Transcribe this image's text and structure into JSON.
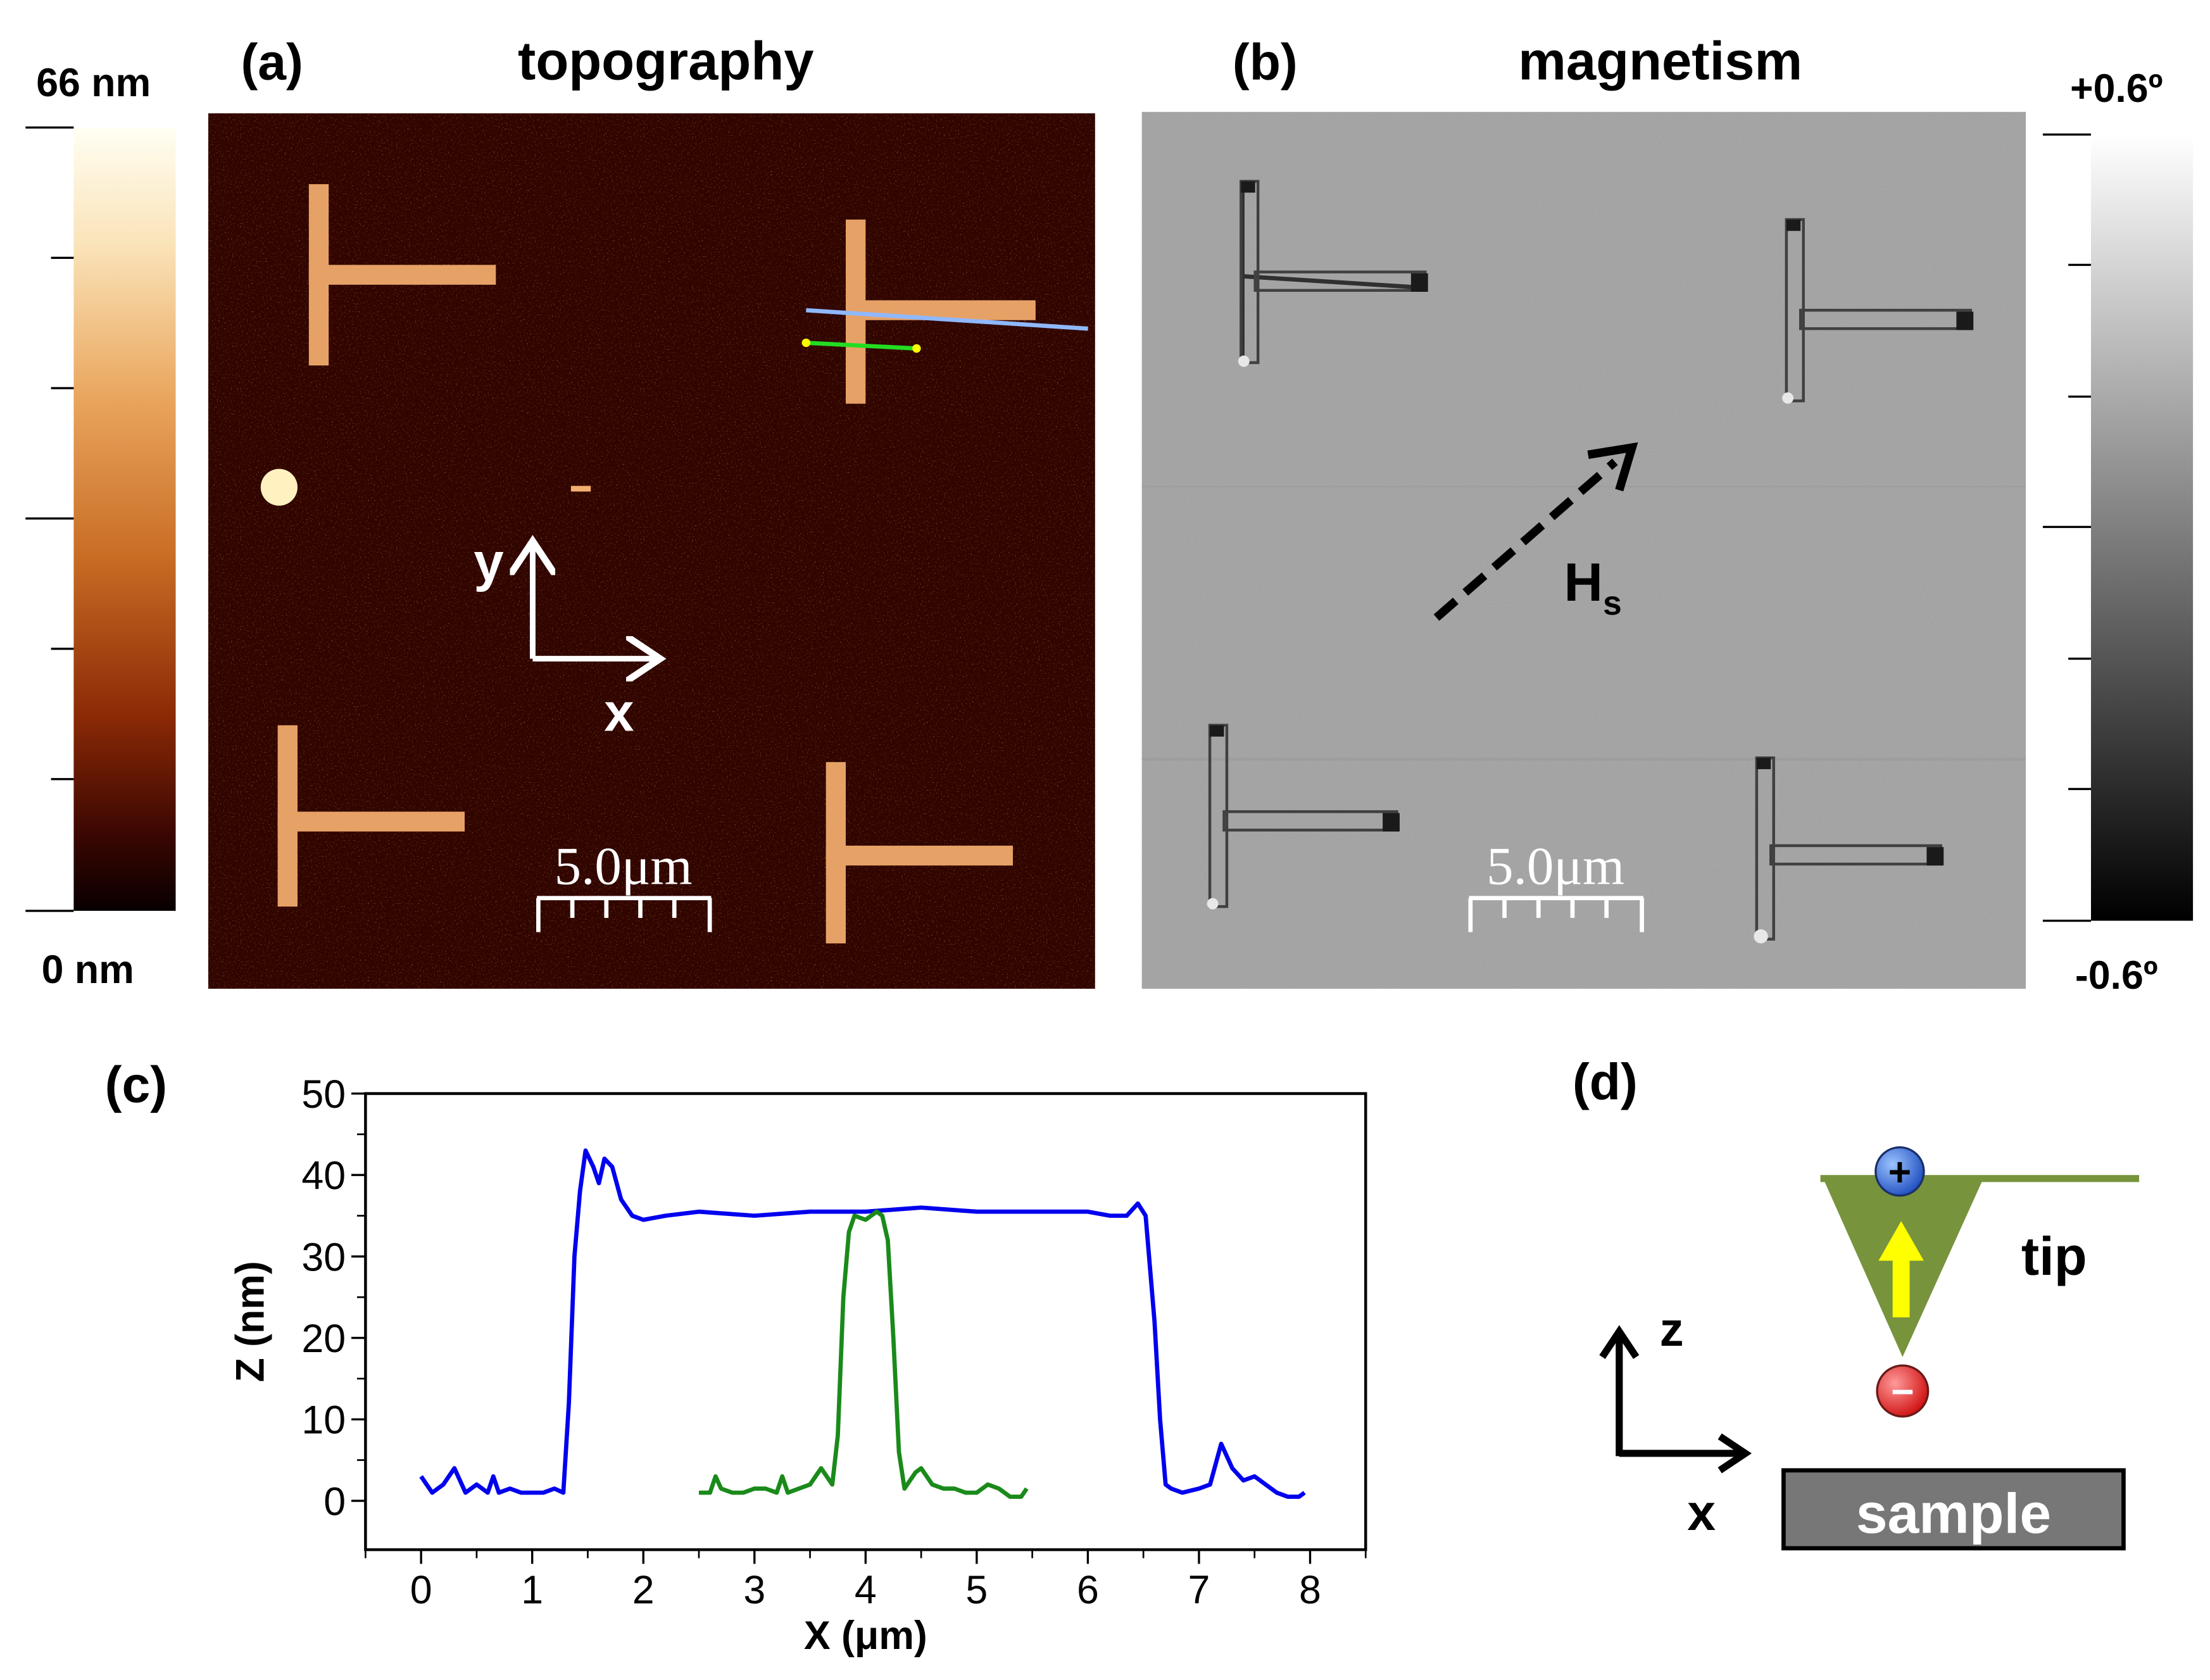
{
  "panel_a": {
    "label": "(a)",
    "title": "topography",
    "colorbar": {
      "max_label": "66 nm",
      "min_label": "0 nm",
      "max": 66,
      "min": 0,
      "unit": "nm"
    },
    "axis_x": "x",
    "axis_y": "y",
    "scalebar": "5.0μm",
    "bg_color": "#300500",
    "feature_color": "#e6a266"
  },
  "panel_b": {
    "label": "(b)",
    "title": "magnetism",
    "colorbar": {
      "max_label": "+0.6º",
      "min_label": "-0.6º",
      "max": 0.6,
      "min": -0.6,
      "unit": "º"
    },
    "field_label_main": "H",
    "field_label_sub": "s",
    "scalebar": "5.0μm",
    "bg_color": "#a3a3a3"
  },
  "panel_c": {
    "label": "(c)",
    "chart_data": {
      "type": "line",
      "xlabel": "X (μm)",
      "ylabel": "Z (nm)",
      "xlim": [
        -0.5,
        8.5
      ],
      "ylim": [
        -6,
        50
      ],
      "xticks": [
        0,
        1,
        2,
        3,
        4,
        5,
        6,
        7,
        8
      ],
      "yticks": [
        0,
        10,
        20,
        30,
        40,
        50
      ],
      "series": [
        {
          "name": "blue profile",
          "color": "#0000ee",
          "x": [
            0,
            0.1,
            0.2,
            0.3,
            0.4,
            0.5,
            0.6,
            0.65,
            0.7,
            0.8,
            0.9,
            1.0,
            1.1,
            1.2,
            1.28,
            1.33,
            1.38,
            1.43,
            1.48,
            1.55,
            1.6,
            1.65,
            1.72,
            1.8,
            1.9,
            2.0,
            2.2,
            2.5,
            3.0,
            3.5,
            4.0,
            4.5,
            5.0,
            5.5,
            6.0,
            6.2,
            6.35,
            6.45,
            6.52,
            6.6,
            6.65,
            6.7,
            6.75,
            6.85,
            7.0,
            7.1,
            7.2,
            7.3,
            7.4,
            7.5,
            7.6,
            7.7,
            7.8,
            7.9,
            7.95
          ],
          "y": [
            3,
            1,
            2,
            4,
            1,
            2,
            1,
            3,
            1,
            1.5,
            1,
            1,
            1,
            1.5,
            1,
            12,
            30,
            38,
            43,
            41,
            39,
            42,
            41,
            37,
            35,
            34.5,
            35,
            35.5,
            35,
            35.5,
            35.5,
            36,
            35.5,
            35.5,
            35.5,
            35,
            35,
            36.5,
            35,
            22,
            10,
            2,
            1.5,
            1,
            1.5,
            2,
            7,
            4,
            2.5,
            3,
            2,
            1,
            0.5,
            0.5,
            1
          ]
        },
        {
          "name": "green profile",
          "color": "#1a8a1a",
          "x": [
            2.5,
            2.6,
            2.65,
            2.7,
            2.8,
            2.9,
            3.0,
            3.1,
            3.2,
            3.25,
            3.3,
            3.4,
            3.5,
            3.6,
            3.7,
            3.75,
            3.8,
            3.85,
            3.9,
            4.0,
            4.1,
            4.15,
            4.2,
            4.25,
            4.3,
            4.35,
            4.45,
            4.5,
            4.6,
            4.7,
            4.8,
            4.9,
            5.0,
            5.1,
            5.2,
            5.3,
            5.4,
            5.45
          ],
          "y": [
            1,
            1,
            3,
            1.5,
            1,
            1,
            1.5,
            1.5,
            1,
            3,
            1,
            1.5,
            2,
            4,
            2,
            8,
            25,
            33,
            35,
            34.5,
            35.5,
            35,
            32,
            20,
            6,
            1.5,
            3.5,
            4,
            2,
            1.5,
            1.5,
            1,
            1,
            2,
            1.5,
            0.5,
            0.5,
            1.5
          ]
        }
      ]
    }
  },
  "panel_d": {
    "label": "(d)",
    "tip_label": "tip",
    "sample_label": "sample",
    "axis_z": "z",
    "axis_x": "x",
    "plus_symbol": "+",
    "minus_symbol": "−",
    "tip_color": "#77933c",
    "moment_color": "#ffff00"
  }
}
